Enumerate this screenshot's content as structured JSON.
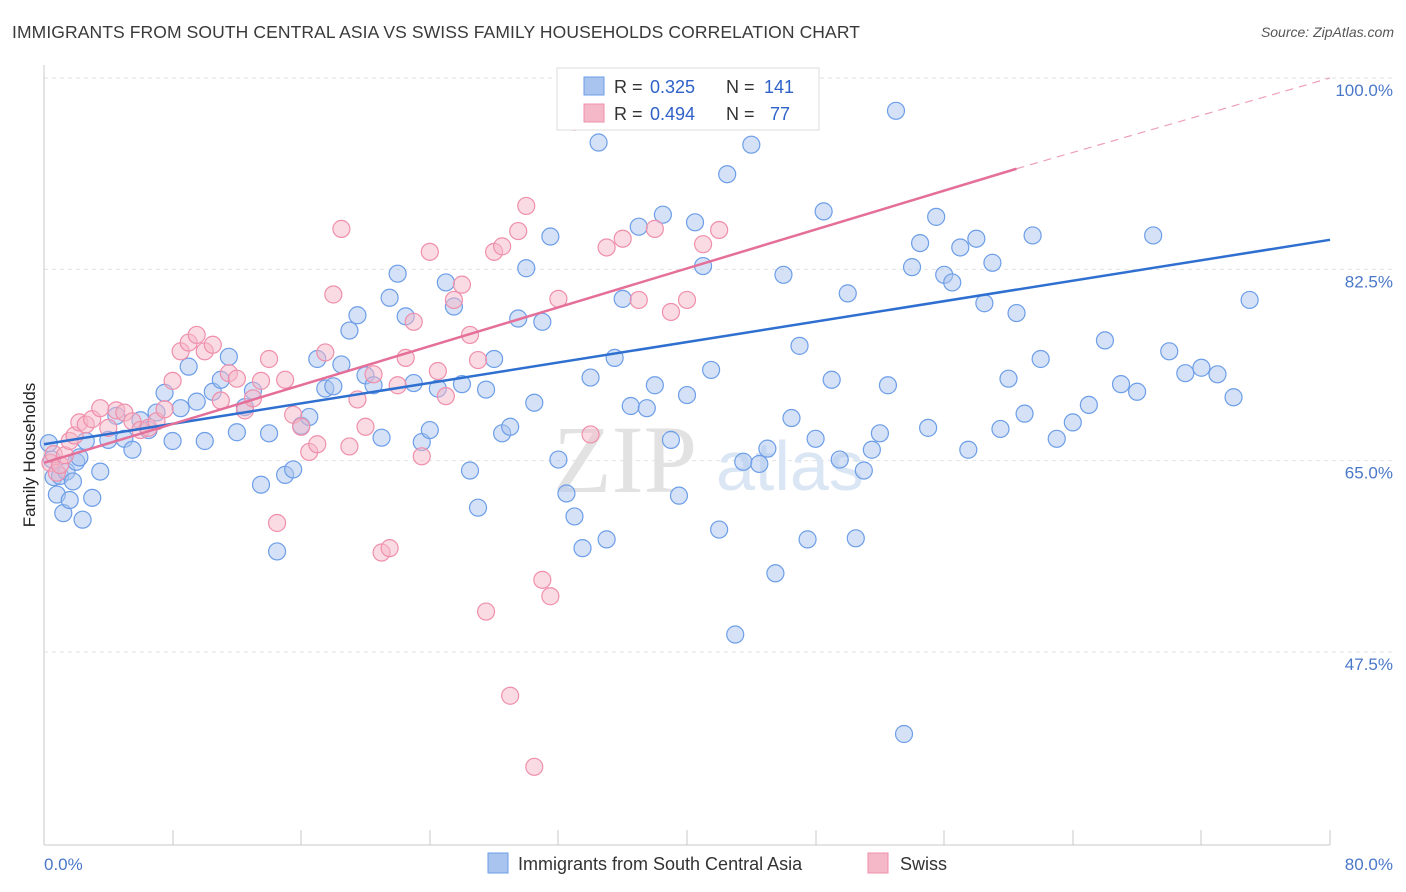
{
  "title": "IMMIGRANTS FROM SOUTH CENTRAL ASIA VS SWISS FAMILY HOUSEHOLDS CORRELATION CHART",
  "source": "Source: ZipAtlas.com",
  "watermark": {
    "zip": "ZIP",
    "atlas": "atlas"
  },
  "legend_top": {
    "r_label": "R = ",
    "n_label": "N = ",
    "rows": [
      {
        "r": "0.325",
        "n": "141",
        "color": "#a9c4ee"
      },
      {
        "r": "0.494",
        "n": "77",
        "color": "#f5b8c8"
      }
    ]
  },
  "legend_bottom": [
    {
      "label": "Immigrants from South Central Asia",
      "color": "#a9c4ee"
    },
    {
      "label": "Swiss",
      "color": "#f5b8c8"
    }
  ],
  "chart_data": {
    "type": "scatter",
    "xlabel": "",
    "ylabel": "Family Households",
    "xlim": [
      0,
      80
    ],
    "ylim": [
      30,
      100
    ],
    "x_tick_labels": [
      "0.0%",
      "80.0%"
    ],
    "y_ticks": [
      47.5,
      65.0,
      82.5,
      100.0
    ],
    "y_tick_labels": [
      "47.5%",
      "65.0%",
      "82.5%",
      "100.0%"
    ],
    "grid": true,
    "series": [
      {
        "name": "Immigrants from South Central Asia",
        "color": "#6d9ee8",
        "fill": "#a9c4ee",
        "trend": {
          "x1": 0,
          "y1": 66.5,
          "x2": 80,
          "y2": 85.2
        },
        "points": [
          [
            0.3,
            66.6
          ],
          [
            0.5,
            65.1
          ],
          [
            0.6,
            63.5
          ],
          [
            0.8,
            61.9
          ],
          [
            1.0,
            63.6
          ],
          [
            1.2,
            60.2
          ],
          [
            1.4,
            64.0
          ],
          [
            1.6,
            61.4
          ],
          [
            1.8,
            63.1
          ],
          [
            2.0,
            64.9
          ],
          [
            2.2,
            65.3
          ],
          [
            2.4,
            59.6
          ],
          [
            2.6,
            66.8
          ],
          [
            3.0,
            61.6
          ],
          [
            3.5,
            64.0
          ],
          [
            4.0,
            66.9
          ],
          [
            4.5,
            69.1
          ],
          [
            5.0,
            67.0
          ],
          [
            5.5,
            66.0
          ],
          [
            6.0,
            68.7
          ],
          [
            6.5,
            67.8
          ],
          [
            7.0,
            69.4
          ],
          [
            7.5,
            71.2
          ],
          [
            8.0,
            66.8
          ],
          [
            8.5,
            69.8
          ],
          [
            9.0,
            73.6
          ],
          [
            9.5,
            70.4
          ],
          [
            10.0,
            66.8
          ],
          [
            10.5,
            71.3
          ],
          [
            11.0,
            72.4
          ],
          [
            11.5,
            74.5
          ],
          [
            12.0,
            67.6
          ],
          [
            12.5,
            69.9
          ],
          [
            13.0,
            71.4
          ],
          [
            13.5,
            62.8
          ],
          [
            14.0,
            67.5
          ],
          [
            14.5,
            56.7
          ],
          [
            15.0,
            63.7
          ],
          [
            15.5,
            64.2
          ],
          [
            16.0,
            68.2
          ],
          [
            16.5,
            69.0
          ],
          [
            17.0,
            74.3
          ],
          [
            17.5,
            71.6
          ],
          [
            18.0,
            71.8
          ],
          [
            18.5,
            73.8
          ],
          [
            19.0,
            76.9
          ],
          [
            19.5,
            78.3
          ],
          [
            20.0,
            72.8
          ],
          [
            20.5,
            71.9
          ],
          [
            21.0,
            67.1
          ],
          [
            21.5,
            79.9
          ],
          [
            22.0,
            82.1
          ],
          [
            22.5,
            78.2
          ],
          [
            23.0,
            72.1
          ],
          [
            23.5,
            66.7
          ],
          [
            24.0,
            67.8
          ],
          [
            24.5,
            71.6
          ],
          [
            25.0,
            81.3
          ],
          [
            25.5,
            79.1
          ],
          [
            26.0,
            72.0
          ],
          [
            26.5,
            64.1
          ],
          [
            27.0,
            60.7
          ],
          [
            27.5,
            71.5
          ],
          [
            28.0,
            74.3
          ],
          [
            28.5,
            67.5
          ],
          [
            29.0,
            68.1
          ],
          [
            29.5,
            78.0
          ],
          [
            30.0,
            82.6
          ],
          [
            30.5,
            70.3
          ],
          [
            31.0,
            77.7
          ],
          [
            31.5,
            85.5
          ],
          [
            32.0,
            65.1
          ],
          [
            32.5,
            62.0
          ],
          [
            33.0,
            59.9
          ],
          [
            33.5,
            57.0
          ],
          [
            34.0,
            72.6
          ],
          [
            34.5,
            94.1
          ],
          [
            35.0,
            57.8
          ],
          [
            35.5,
            74.4
          ],
          [
            36.0,
            79.8
          ],
          [
            36.5,
            70.0
          ],
          [
            37.0,
            86.4
          ],
          [
            37.5,
            69.8
          ],
          [
            38.0,
            71.9
          ],
          [
            38.5,
            87.5
          ],
          [
            39.0,
            66.9
          ],
          [
            39.5,
            61.8
          ],
          [
            40.0,
            71.0
          ],
          [
            40.5,
            86.8
          ],
          [
            41.0,
            82.8
          ],
          [
            41.5,
            73.3
          ],
          [
            42.0,
            58.7
          ],
          [
            42.5,
            91.2
          ],
          [
            43.0,
            49.1
          ],
          [
            43.5,
            64.9
          ],
          [
            44.0,
            93.9
          ],
          [
            44.5,
            64.7
          ],
          [
            45.0,
            66.1
          ],
          [
            45.5,
            54.7
          ],
          [
            46.0,
            82.0
          ],
          [
            46.5,
            68.9
          ],
          [
            47.0,
            75.5
          ],
          [
            47.5,
            57.8
          ],
          [
            48.0,
            67.0
          ],
          [
            48.5,
            87.8
          ],
          [
            49.0,
            72.4
          ],
          [
            49.5,
            65.1
          ],
          [
            50.0,
            80.3
          ],
          [
            50.5,
            57.9
          ],
          [
            51.0,
            64.1
          ],
          [
            51.5,
            66.0
          ],
          [
            52.0,
            67.5
          ],
          [
            52.5,
            71.9
          ],
          [
            53.0,
            97.0
          ],
          [
            53.5,
            40.0
          ],
          [
            54.0,
            82.7
          ],
          [
            54.5,
            84.9
          ],
          [
            55.0,
            68.0
          ],
          [
            55.5,
            87.3
          ],
          [
            56.0,
            82.0
          ],
          [
            56.5,
            81.3
          ],
          [
            57.0,
            84.5
          ],
          [
            57.5,
            66.0
          ],
          [
            58.0,
            85.3
          ],
          [
            58.5,
            79.4
          ],
          [
            59.0,
            83.1
          ],
          [
            59.5,
            67.9
          ],
          [
            60.0,
            72.5
          ],
          [
            60.5,
            78.5
          ],
          [
            61.0,
            69.3
          ],
          [
            61.5,
            85.6
          ],
          [
            62.0,
            74.3
          ],
          [
            63.0,
            67.0
          ],
          [
            64.0,
            68.5
          ],
          [
            65.0,
            70.1
          ],
          [
            66.0,
            76.0
          ],
          [
            67.0,
            72.0
          ],
          [
            68.0,
            71.3
          ],
          [
            69.0,
            85.6
          ],
          [
            70.0,
            75.0
          ],
          [
            71.0,
            73.0
          ],
          [
            72.0,
            73.5
          ],
          [
            73.0,
            72.9
          ],
          [
            74.0,
            70.8
          ],
          [
            75.0,
            79.7
          ]
        ]
      },
      {
        "name": "Swiss",
        "color": "#ef8fab",
        "fill": "#f5b8c8",
        "trend": {
          "x1": 0,
          "y1": 64.8,
          "x2": 60.5,
          "y2": 91.7
        },
        "trend_dashed": {
          "x1": 60.5,
          "y1": 91.7,
          "x2": 80,
          "y2": 100.0
        },
        "points": [
          [
            0.4,
            64.8
          ],
          [
            0.6,
            65.6
          ],
          [
            0.8,
            63.9
          ],
          [
            1.0,
            64.6
          ],
          [
            1.3,
            65.5
          ],
          [
            1.6,
            66.8
          ],
          [
            1.9,
            67.3
          ],
          [
            2.2,
            68.5
          ],
          [
            2.6,
            68.3
          ],
          [
            3.0,
            68.8
          ],
          [
            3.5,
            69.8
          ],
          [
            4.0,
            68.0
          ],
          [
            4.5,
            69.6
          ],
          [
            5.0,
            69.4
          ],
          [
            5.5,
            68.6
          ],
          [
            6.0,
            67.8
          ],
          [
            6.5,
            68.0
          ],
          [
            7.0,
            68.6
          ],
          [
            7.5,
            69.7
          ],
          [
            8.0,
            72.3
          ],
          [
            8.5,
            75.0
          ],
          [
            9.0,
            75.8
          ],
          [
            9.5,
            76.5
          ],
          [
            10.0,
            75.0
          ],
          [
            10.5,
            75.6
          ],
          [
            11.0,
            70.5
          ],
          [
            11.5,
            73.0
          ],
          [
            12.0,
            72.5
          ],
          [
            12.5,
            69.6
          ],
          [
            13.0,
            70.7
          ],
          [
            13.5,
            72.3
          ],
          [
            14.0,
            74.3
          ],
          [
            14.5,
            59.3
          ],
          [
            15.0,
            72.4
          ],
          [
            15.5,
            69.2
          ],
          [
            16.0,
            68.1
          ],
          [
            16.5,
            65.8
          ],
          [
            17.0,
            66.5
          ],
          [
            17.5,
            74.9
          ],
          [
            18.0,
            80.2
          ],
          [
            18.5,
            86.2
          ],
          [
            19.0,
            66.3
          ],
          [
            19.5,
            70.6
          ],
          [
            20.0,
            68.1
          ],
          [
            20.5,
            72.9
          ],
          [
            21.0,
            56.6
          ],
          [
            21.5,
            57.0
          ],
          [
            22.0,
            71.9
          ],
          [
            22.5,
            74.4
          ],
          [
            23.0,
            77.7
          ],
          [
            23.5,
            65.4
          ],
          [
            24.0,
            84.1
          ],
          [
            24.5,
            73.2
          ],
          [
            25.0,
            70.9
          ],
          [
            25.5,
            79.7
          ],
          [
            26.0,
            81.1
          ],
          [
            26.5,
            76.5
          ],
          [
            27.0,
            74.2
          ],
          [
            27.5,
            51.2
          ],
          [
            28.0,
            84.1
          ],
          [
            28.5,
            84.6
          ],
          [
            29.0,
            43.5
          ],
          [
            29.5,
            86.0
          ],
          [
            30.0,
            88.3
          ],
          [
            30.5,
            37.0
          ],
          [
            31.0,
            54.1
          ],
          [
            31.5,
            52.6
          ],
          [
            32.0,
            79.8
          ],
          [
            33.0,
            96.0
          ],
          [
            34.0,
            67.4
          ],
          [
            35.0,
            84.5
          ],
          [
            36.0,
            85.3
          ],
          [
            37.0,
            79.7
          ],
          [
            38.0,
            86.2
          ],
          [
            39.0,
            78.6
          ],
          [
            40.0,
            79.7
          ],
          [
            41.0,
            84.8
          ],
          [
            42.0,
            86.1
          ]
        ]
      }
    ]
  }
}
